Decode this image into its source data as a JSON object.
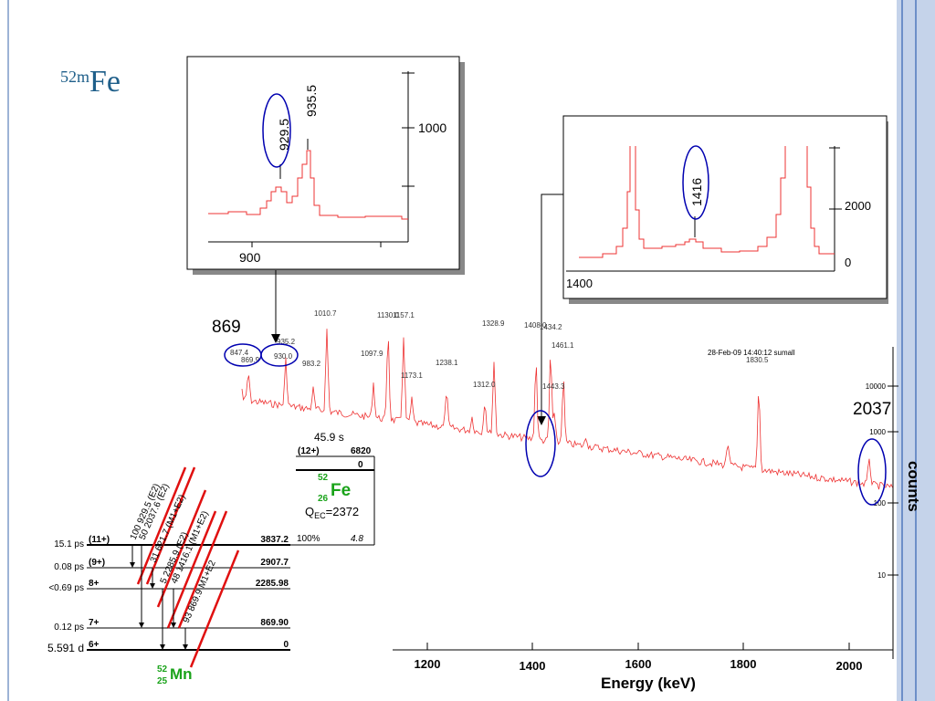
{
  "title": {
    "mass": "52m",
    "symbol": "Fe"
  },
  "inset1": {
    "peaks": [
      "929.5",
      "935.5"
    ],
    "ytick": "1000",
    "xtick": "900"
  },
  "inset2": {
    "peak": "1416",
    "yticks": [
      "2000",
      "0"
    ],
    "xtick": "1400"
  },
  "spectrum": {
    "annotations": [
      "869",
      "2037"
    ],
    "peak_labels": [
      "847.4",
      "869.9",
      "935.2",
      "930.0",
      "983.2",
      "1010.7",
      "1097.9",
      "1130.0",
      "1157.1",
      "1173.1",
      "1238.1",
      "1312.0",
      "1328.9",
      "1408.0",
      "1434.2",
      "1443.3",
      "1461.1",
      "1830.5"
    ],
    "timestamp": "28-Feb-09 14:40:12  sumall",
    "yticks": [
      "10000",
      "1000",
      "100",
      "10"
    ],
    "xticks": [
      "1200",
      "1400",
      "1600",
      "1800",
      "2000"
    ],
    "xlabel": "Energy (keV)",
    "ylabel": "counts"
  },
  "parent": {
    "halflife": "45.9 s",
    "spin_high": "(12+)",
    "energy_high": "6820",
    "energy_ground": "0",
    "mass": "52",
    "z": "26",
    "symbol": "Fe",
    "q": "Q",
    "q_sub": "EC",
    "q_value": "=2372"
  },
  "levels": [
    {
      "halflife": "15.1 ps",
      "spin": "(11+)",
      "energy": "3837.2",
      "branch": "100%",
      "logft": "4.8"
    },
    {
      "halflife": "0.08 ps",
      "spin": "(9+)",
      "energy": "2907.7"
    },
    {
      "halflife": "<0.69 ps",
      "spin": "8+",
      "energy": "2285.98"
    },
    {
      "halflife": "0.12 ps",
      "spin": "7+",
      "energy": "869.90"
    },
    {
      "halflife": "5.591 d",
      "spin": "6+",
      "energy": "0"
    }
  ],
  "transitions": [
    "100 929.5 (E2)",
    "50 2037.6 (E2)",
    "31 621.7 (M1+E2)",
    "5 2285.9 (E2)",
    "48 1416.1 (M1+E2)",
    "93 869.9 M1+E2"
  ],
  "daughter": {
    "mass": "52",
    "z": "25",
    "symbol": "Mn"
  }
}
